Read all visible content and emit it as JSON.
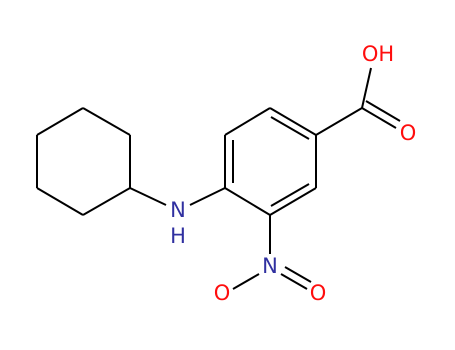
{
  "atoms": [
    {
      "label": "OH"
    },
    {
      "label": "O"
    },
    {
      "label": "N"
    },
    {
      "label": "H"
    },
    {
      "label": "N"
    },
    {
      "label": "O"
    },
    {
      "label": "O"
    }
  ]
}
